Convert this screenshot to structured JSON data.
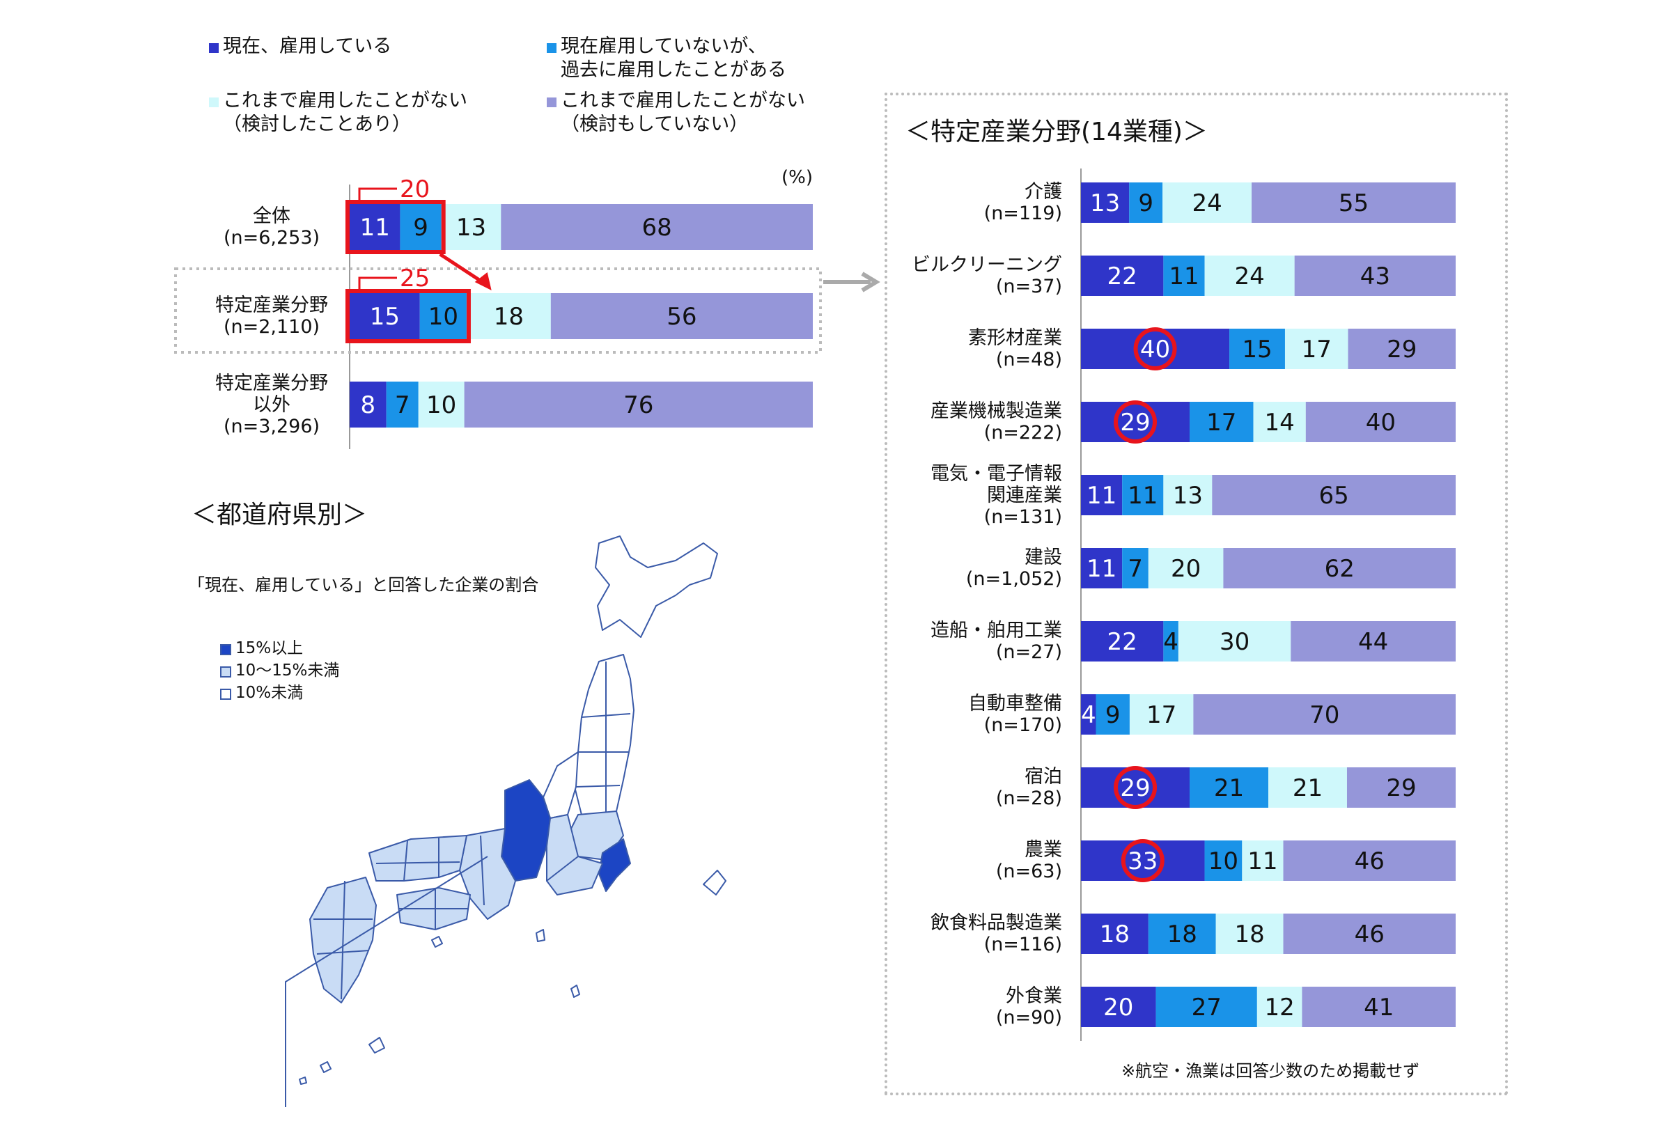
{
  "colors": {
    "current": "#2f35c9",
    "past": "#1a93e8",
    "considered": "#cff8fb",
    "never": "#9596d9",
    "highlight": "#e8141c",
    "map_high": "#1c45c4",
    "map_mid": "#c9dcf5",
    "map_low": "#ffffff",
    "map_border": "#3a5aa8",
    "dotted": "#bbbbbb",
    "arrow": "#aaaaaa"
  },
  "legend": [
    {
      "lines": [
        "現在、雇用している"
      ],
      "color_key": "current"
    },
    {
      "lines": [
        "現在雇用していないが、",
        "過去に雇用したことがある"
      ],
      "color_key": "past"
    },
    {
      "lines": [
        "これまで雇用したことがない",
        "（検討したことあり）"
      ],
      "color_key": "considered"
    },
    {
      "lines": [
        "これまで雇用したことがない",
        "（検討もしていない）"
      ],
      "color_key": "never"
    }
  ],
  "unit_label": "(%)",
  "left_chart": {
    "rows": [
      {
        "label": [
          "全体"
        ],
        "n": "(n=6,253)",
        "values": [
          11,
          9,
          13,
          68
        ],
        "highlight_sum": "20"
      },
      {
        "label": [
          "特定産業分野"
        ],
        "n": "(n=2,110)",
        "values": [
          15,
          10,
          18,
          56
        ],
        "highlight_sum": "25"
      },
      {
        "label": [
          "特定産業分野",
          "以外"
        ],
        "n": "(n=3,296)",
        "values": [
          8,
          7,
          10,
          76
        ]
      }
    ]
  },
  "map_section": {
    "title": "＜都道府県別＞",
    "subtitle": "「現在、雇用している」と回答した企業の割合",
    "legend": [
      {
        "label": "15%以上",
        "color_key": "map_high"
      },
      {
        "label": "10～15%未満",
        "color_key": "map_mid"
      },
      {
        "label": "10%未満",
        "color_key": "map_low"
      }
    ]
  },
  "right_chart": {
    "title": "＜特定産業分野(14業種)＞",
    "note": "※航空・漁業は回答少数のため掲載せず",
    "rows": [
      {
        "label": [
          "介護"
        ],
        "n": "(n=119)",
        "values": [
          13,
          9,
          24,
          55
        ]
      },
      {
        "label": [
          "ビルクリーニング"
        ],
        "n": "(n=37)",
        "values": [
          22,
          11,
          24,
          43
        ]
      },
      {
        "label": [
          "素形材産業"
        ],
        "n": "(n=48)",
        "values": [
          40,
          15,
          17,
          29
        ],
        "circled": true
      },
      {
        "label": [
          "産業機械製造業"
        ],
        "n": "(n=222)",
        "values": [
          29,
          17,
          14,
          40
        ],
        "circled": true
      },
      {
        "label": [
          "電気・電子情報",
          "関連産業"
        ],
        "n": "(n=131)",
        "values": [
          11,
          11,
          13,
          65
        ]
      },
      {
        "label": [
          "建設"
        ],
        "n": "(n=1,052)",
        "values": [
          11,
          7,
          20,
          62
        ]
      },
      {
        "label": [
          "造船・舶用工業"
        ],
        "n": "(n=27)",
        "values": [
          22,
          4,
          30,
          44
        ]
      },
      {
        "label": [
          "自動車整備"
        ],
        "n": "(n=170)",
        "values": [
          4,
          9,
          17,
          70
        ]
      },
      {
        "label": [
          "宿泊"
        ],
        "n": "(n=28)",
        "values": [
          29,
          21,
          21,
          29
        ],
        "circled": true
      },
      {
        "label": [
          "農業"
        ],
        "n": "(n=63)",
        "values": [
          33,
          10,
          11,
          46
        ],
        "circled": true
      },
      {
        "label": [
          "飲食料品製造業"
        ],
        "n": "(n=116)",
        "values": [
          18,
          18,
          18,
          46
        ]
      },
      {
        "label": [
          "外食業"
        ],
        "n": "(n=90)",
        "values": [
          20,
          27,
          12,
          41
        ]
      }
    ]
  },
  "chart_data": [
    {
      "type": "bar",
      "orientation": "horizontal",
      "stacked": true,
      "categories": [
        "全体 (n=6,253)",
        "特定産業分野 (n=2,110)",
        "特定産業分野以外 (n=3,296)"
      ],
      "series": [
        {
          "name": "現在、雇用している",
          "values": [
            11,
            15,
            8
          ]
        },
        {
          "name": "現在雇用していないが、過去に雇用したことがある",
          "values": [
            9,
            10,
            7
          ]
        },
        {
          "name": "これまで雇用したことがない（検討したことあり）",
          "values": [
            13,
            18,
            10
          ]
        },
        {
          "name": "これまで雇用したことがない（検討もしていない）",
          "values": [
            68,
            56,
            76
          ]
        }
      ],
      "annotations": [
        "20",
        "25"
      ],
      "unit": "(%)"
    },
    {
      "type": "bar",
      "orientation": "horizontal",
      "stacked": true,
      "title": "＜特定産業分野(14業種)＞",
      "categories": [
        "介護 (n=119)",
        "ビルクリーニング (n=37)",
        "素形材産業 (n=48)",
        "産業機械製造業 (n=222)",
        "電気・電子情報関連産業 (n=131)",
        "建設 (n=1,052)",
        "造船・舶用工業 (n=27)",
        "自動車整備 (n=170)",
        "宿泊 (n=28)",
        "農業 (n=63)",
        "飲食料品製造業 (n=116)",
        "外食業 (n=90)"
      ],
      "series": [
        {
          "name": "現在、雇用している",
          "values": [
            13,
            22,
            40,
            29,
            11,
            11,
            22,
            4,
            29,
            33,
            18,
            20
          ]
        },
        {
          "name": "現在雇用していないが、過去に雇用したことがある",
          "values": [
            9,
            11,
            15,
            17,
            11,
            7,
            4,
            9,
            21,
            10,
            18,
            27
          ]
        },
        {
          "name": "これまで雇用したことがない（検討したことあり）",
          "values": [
            24,
            24,
            17,
            14,
            13,
            20,
            30,
            17,
            21,
            11,
            18,
            12
          ]
        },
        {
          "name": "これまで雇用したことがない（検討もしていない）",
          "values": [
            55,
            43,
            29,
            40,
            65,
            62,
            44,
            70,
            29,
            46,
            46,
            41
          ]
        }
      ]
    }
  ]
}
